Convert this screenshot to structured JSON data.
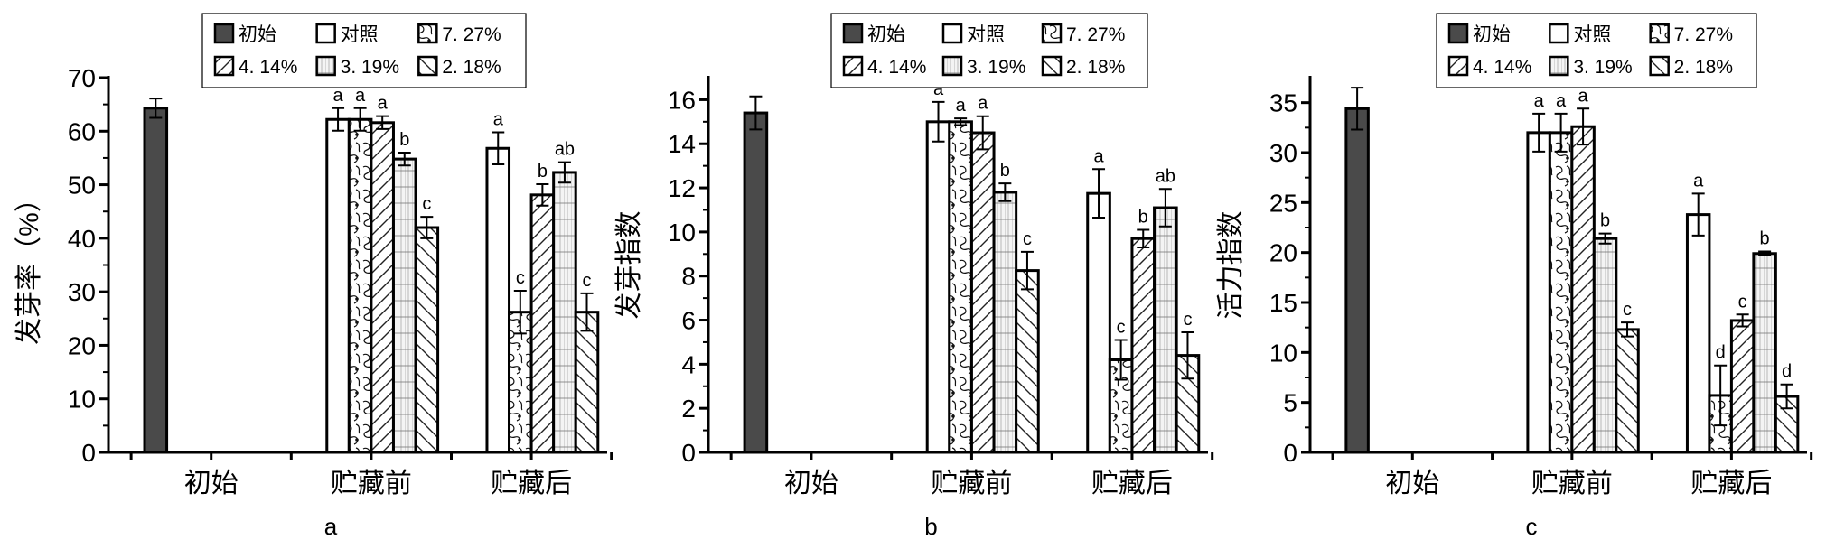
{
  "legend": {
    "entries": [
      {
        "label": "初始",
        "pattern": "solid"
      },
      {
        "label": "对照",
        "pattern": "white"
      },
      {
        "label": "7. 27%",
        "pattern": "blob"
      },
      {
        "label": "4. 14%",
        "pattern": "diag-up"
      },
      {
        "label": "3. 19%",
        "pattern": "grid"
      },
      {
        "label": "2. 18%",
        "pattern": "diag-down"
      }
    ]
  },
  "colors": {
    "initial": "#4a4a4a",
    "stroke": "#000000"
  },
  "chart_data": [
    {
      "type": "bar",
      "panel_label": "a",
      "ylabel": "发芽率（%）",
      "ylim": [
        0,
        70
      ],
      "yticks": [
        0,
        10,
        20,
        30,
        40,
        50,
        60,
        70
      ],
      "yminor": 5,
      "categories": [
        "初始",
        "贮藏前",
        "贮藏后"
      ],
      "series": [
        {
          "name": "初始",
          "values": [
            64.3,
            null,
            null
          ],
          "errors": [
            1.8,
            null,
            null
          ],
          "letters": [
            "",
            "",
            ""
          ]
        },
        {
          "name": "对照",
          "values": [
            null,
            62.2,
            56.8
          ],
          "errors": [
            null,
            2.1,
            3.0
          ],
          "letters": [
            "",
            "a",
            "a"
          ]
        },
        {
          "name": "7. 27%",
          "values": [
            null,
            62.2,
            26.2
          ],
          "errors": [
            null,
            2.1,
            4.0
          ],
          "letters": [
            "",
            "a",
            "c"
          ]
        },
        {
          "name": "4. 14%",
          "values": [
            null,
            61.6,
            48.1
          ],
          "errors": [
            null,
            1.2,
            2.0
          ],
          "letters": [
            "",
            "a",
            "b"
          ]
        },
        {
          "name": "3. 19%",
          "values": [
            null,
            54.8,
            52.3
          ],
          "errors": [
            null,
            1.2,
            1.9
          ],
          "letters": [
            "",
            "b",
            "ab"
          ]
        },
        {
          "name": "2. 18%",
          "values": [
            null,
            42.0,
            26.2
          ],
          "errors": [
            null,
            2.0,
            3.5
          ],
          "letters": [
            "",
            "c",
            "c"
          ]
        }
      ]
    },
    {
      "type": "bar",
      "panel_label": "b",
      "ylabel": "发芽指数",
      "ylim": [
        0,
        17
      ],
      "yticks": [
        0,
        2,
        4,
        6,
        8,
        10,
        12,
        14,
        16
      ],
      "yminor": 1,
      "categories": [
        "初始",
        "贮藏前",
        "贮藏后"
      ],
      "series": [
        {
          "name": "初始",
          "values": [
            15.4,
            null,
            null
          ],
          "errors": [
            0.75,
            null,
            null
          ],
          "letters": [
            "",
            "",
            ""
          ]
        },
        {
          "name": "对照",
          "values": [
            null,
            15.0,
            11.75
          ],
          "errors": [
            null,
            0.9,
            1.1
          ],
          "letters": [
            "",
            "a",
            "a"
          ]
        },
        {
          "name": "7. 27%",
          "values": [
            null,
            15.0,
            4.2
          ],
          "errors": [
            null,
            0.15,
            0.9
          ],
          "letters": [
            "",
            "a",
            "c"
          ]
        },
        {
          "name": "4. 14%",
          "values": [
            null,
            14.5,
            9.7
          ],
          "errors": [
            null,
            0.75,
            0.4
          ],
          "letters": [
            "",
            "a",
            "b"
          ]
        },
        {
          "name": "3. 19%",
          "values": [
            null,
            11.8,
            11.1
          ],
          "errors": [
            null,
            0.4,
            0.85
          ],
          "letters": [
            "",
            "b",
            "ab"
          ]
        },
        {
          "name": "2. 18%",
          "values": [
            null,
            8.25,
            4.4
          ],
          "errors": [
            null,
            0.85,
            1.05
          ],
          "letters": [
            "",
            "c",
            "c"
          ]
        }
      ]
    },
    {
      "type": "bar",
      "panel_label": "c",
      "ylabel": "活力指数",
      "ylim": [
        0,
        37.5
      ],
      "yticks": [
        0,
        5,
        10,
        15,
        20,
        25,
        30,
        35
      ],
      "yminor": 2.5,
      "categories": [
        "初始",
        "贮藏前",
        "贮藏后"
      ],
      "series": [
        {
          "name": "初始",
          "values": [
            34.4,
            null,
            null
          ],
          "errors": [
            2.1,
            null,
            null
          ],
          "letters": [
            "",
            "",
            ""
          ]
        },
        {
          "name": "对照",
          "values": [
            null,
            32.0,
            23.8
          ],
          "errors": [
            null,
            1.9,
            2.1
          ],
          "letters": [
            "",
            "a",
            "a"
          ]
        },
        {
          "name": "7. 27%",
          "values": [
            null,
            32.0,
            5.7
          ],
          "errors": [
            null,
            1.9,
            3.0
          ],
          "letters": [
            "",
            "a",
            "d"
          ]
        },
        {
          "name": "4. 14%",
          "values": [
            null,
            32.6,
            13.2
          ],
          "errors": [
            null,
            1.8,
            0.6
          ],
          "letters": [
            "",
            "a",
            "c"
          ]
        },
        {
          "name": "3. 19%",
          "values": [
            null,
            21.4,
            19.9
          ],
          "errors": [
            null,
            0.5,
            0.2
          ],
          "letters": [
            "",
            "b",
            "b"
          ]
        },
        {
          "name": "2. 18%",
          "values": [
            null,
            12.3,
            5.6
          ],
          "errors": [
            null,
            0.7,
            1.2
          ],
          "letters": [
            "",
            "c",
            "d"
          ]
        }
      ]
    }
  ]
}
